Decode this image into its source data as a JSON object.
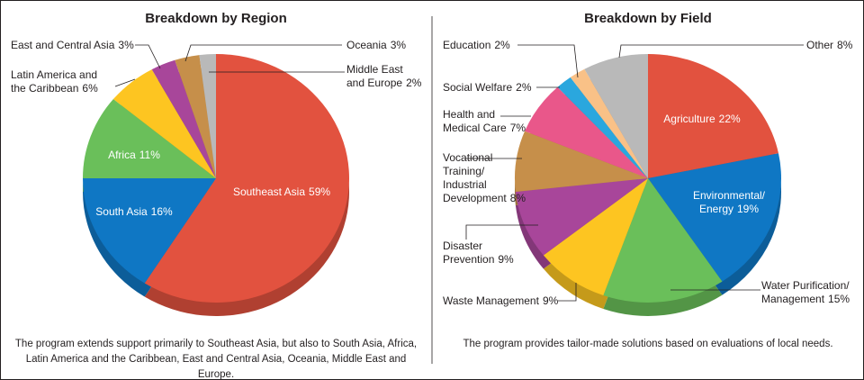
{
  "chart_data": [
    {
      "type": "pie",
      "title": "Breakdown by Region",
      "categories": [
        "Southeast Asia",
        "South Asia",
        "Africa",
        "Latin America and the Caribbean",
        "East and Central Asia",
        "Oceania",
        "Middle East and Europe"
      ],
      "values": [
        59,
        16,
        11,
        6,
        3,
        3,
        2
      ],
      "value_labels": [
        "59%",
        "16%",
        "11%",
        "6%",
        "3%",
        "3%",
        "2%"
      ],
      "colors": [
        "#e2523f",
        "#0f77c4",
        "#6abf5a",
        "#fdc521",
        "#a8469a",
        "#c68f4a",
        "#b9b9b9"
      ],
      "caption": "The program extends support primarily to Southeast Asia, but also to South Asia, Africa, Latin America and the Caribbean, East and Central Asia, Oceania, Middle East and Europe."
    },
    {
      "type": "pie",
      "title": "Breakdown by Field",
      "categories": [
        "Agriculture",
        "Environmental/ Energy",
        "Water Purification/ Management",
        "Waste Management",
        "Disaster Prevention",
        "Vocational Training/ Industrial Development",
        "Health and Medical Care",
        "Social Welfare",
        "Education",
        "Other"
      ],
      "values": [
        22,
        19,
        15,
        9,
        9,
        8,
        7,
        2,
        2,
        8
      ],
      "value_labels": [
        "22%",
        "19%",
        "15%",
        "9%",
        "9%",
        "8%",
        "7%",
        "2%",
        "2%",
        "8%"
      ],
      "colors": [
        "#e2523f",
        "#0f77c4",
        "#6abf5a",
        "#fdc521",
        "#a8469a",
        "#c68f4a",
        "#e9578a",
        "#2aa7de",
        "#f9c187",
        "#b9b9b9"
      ],
      "caption": "The program provides tailor-made solutions based on evaluations of local needs."
    }
  ]
}
